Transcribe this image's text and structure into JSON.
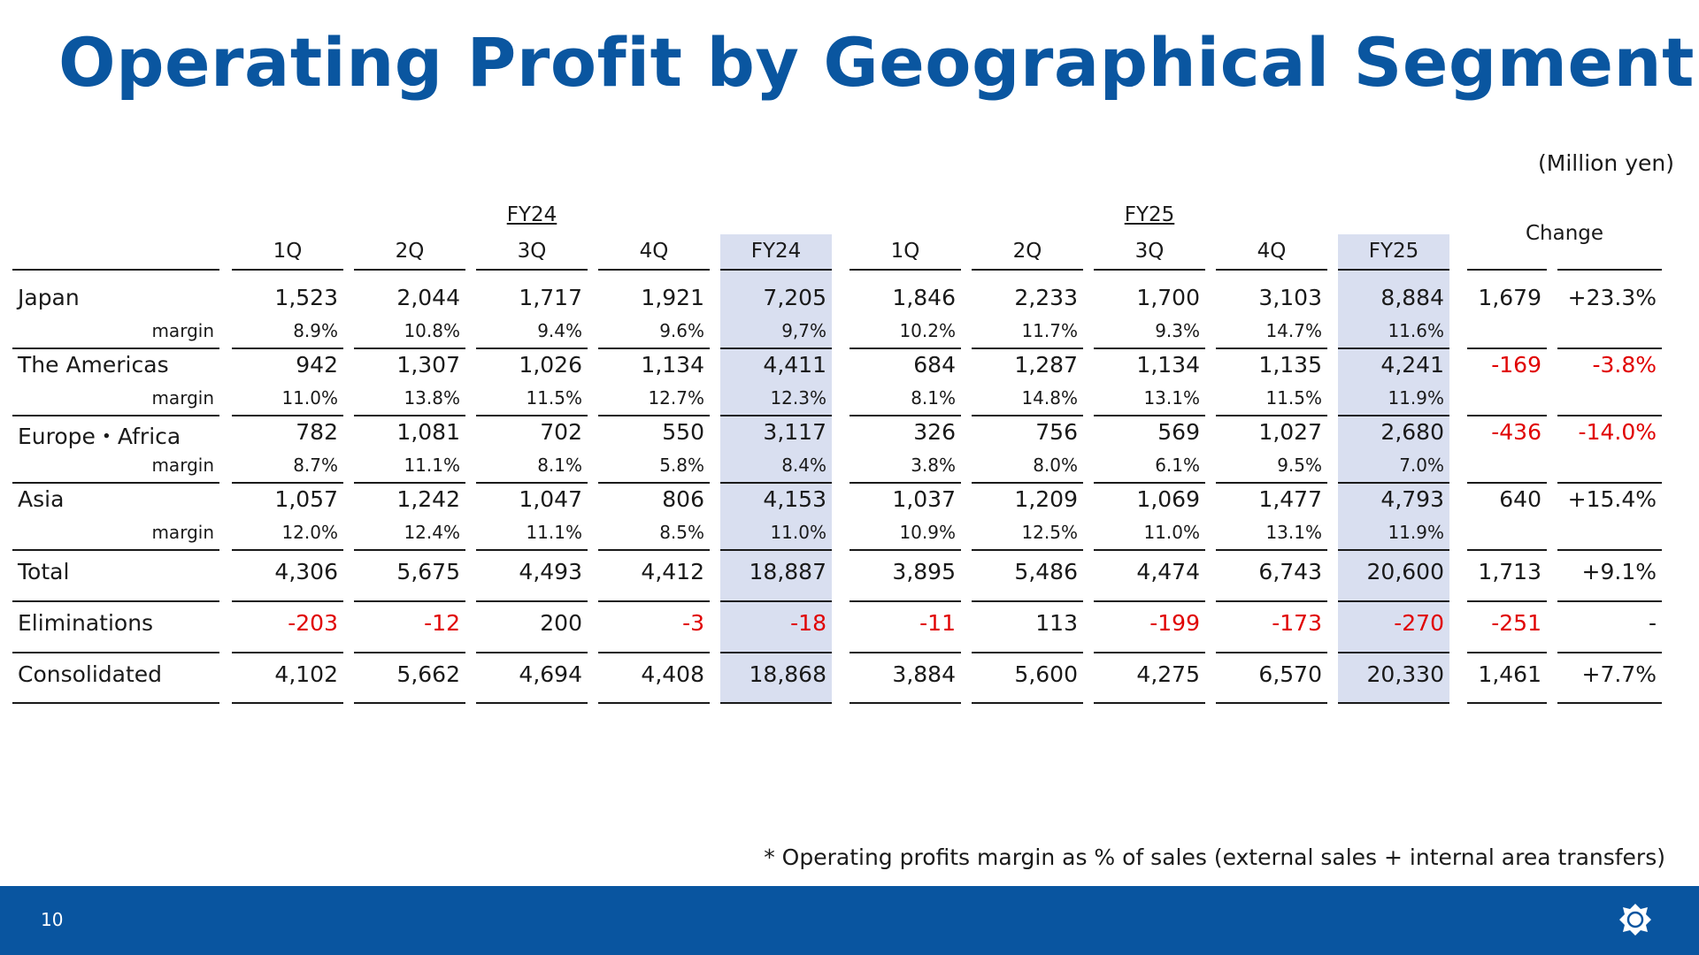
{
  "title": "Operating Profit by Geographical Segment",
  "unit_note": "(Million yen)",
  "footnote": "* Operating profits margin as % of sales (external sales + internal area transfers)",
  "page_number": "10",
  "colors": {
    "title": "#0a56a0",
    "footer": "#0955a0",
    "highlight": "#d9dff0",
    "negative": "#e00000"
  },
  "header": {
    "fy24_group": "FY24",
    "fy25_group": "FY25",
    "change": "Change",
    "columns": [
      "1Q",
      "2Q",
      "3Q",
      "4Q",
      "FY24",
      "1Q",
      "2Q",
      "3Q",
      "4Q",
      "FY25"
    ]
  },
  "rows": [
    {
      "label": "Japan",
      "values": [
        "1,523",
        "2,044",
        "1,717",
        "1,921",
        "7,205",
        "1,846",
        "2,233",
        "1,700",
        "3,103",
        "8,884"
      ],
      "change": [
        "1,679",
        "+23.3%"
      ],
      "margin_label": "margin",
      "margins": [
        "8.9%",
        "10.8%",
        "9.4%",
        "9.6%",
        "9,7%",
        "10.2%",
        "11.7%",
        "9.3%",
        "14.7%",
        "11.6%"
      ]
    },
    {
      "label": "The Americas",
      "values": [
        "942",
        "1,307",
        "1,026",
        "1,134",
        "4,411",
        "684",
        "1,287",
        "1,134",
        "1,135",
        "4,241"
      ],
      "change": [
        "-169",
        "-3.8%"
      ],
      "margin_label": "margin",
      "margins": [
        "11.0%",
        "13.8%",
        "11.5%",
        "12.7%",
        "12.3%",
        "8.1%",
        "14.8%",
        "13.1%",
        "11.5%",
        "11.9%"
      ]
    },
    {
      "label": "Europe・Africa",
      "values": [
        "782",
        "1,081",
        "702",
        "550",
        "3,117",
        "326",
        "756",
        "569",
        "1,027",
        "2,680"
      ],
      "change": [
        "-436",
        "-14.0%"
      ],
      "margin_label": "margin",
      "margins": [
        "8.7%",
        "11.1%",
        "8.1%",
        "5.8%",
        "8.4%",
        "3.8%",
        "8.0%",
        "6.1%",
        "9.5%",
        "7.0%"
      ]
    },
    {
      "label": "Asia",
      "values": [
        "1,057",
        "1,242",
        "1,047",
        "806",
        "4,153",
        "1,037",
        "1,209",
        "1,069",
        "1,477",
        "4,793"
      ],
      "change": [
        "640",
        "+15.4%"
      ],
      "margin_label": "margin",
      "margins": [
        "12.0%",
        "12.4%",
        "11.1%",
        "8.5%",
        "11.0%",
        "10.9%",
        "12.5%",
        "11.0%",
        "13.1%",
        "11.9%"
      ]
    },
    {
      "label": "Total",
      "values": [
        "4,306",
        "5,675",
        "4,493",
        "4,412",
        "18,887",
        "3,895",
        "5,486",
        "4,474",
        "6,743",
        "20,600"
      ],
      "change": [
        "1,713",
        "+9.1%"
      ]
    },
    {
      "label": "Eliminations",
      "values": [
        "-203",
        "-12",
        "200",
        "-3",
        "-18",
        "-11",
        "113",
        "-199",
        "-173",
        "-270"
      ],
      "change": [
        "-251",
        "-"
      ]
    },
    {
      "label": "Consolidated",
      "values": [
        "4,102",
        "5,662",
        "4,694",
        "4,408",
        "18,868",
        "3,884",
        "5,600",
        "4,275",
        "6,570",
        "20,330"
      ],
      "change": [
        "1,461",
        "+7.7%"
      ]
    }
  ]
}
